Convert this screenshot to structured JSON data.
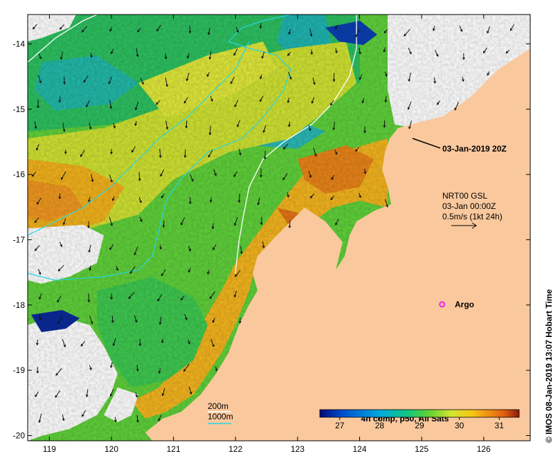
{
  "map": {
    "lon_ticks": [
      "119",
      "120",
      "121",
      "122",
      "123",
      "124",
      "125",
      "126"
    ],
    "lat_ticks": [
      "-14",
      "-15",
      "-16",
      "-17",
      "-18",
      "-19",
      "-20"
    ],
    "lon_range": [
      118.65,
      126.75
    ],
    "lat_range": [
      -20.08,
      -13.55
    ],
    "land_color": "#f9c89d",
    "cloud_color": "#ffffff"
  },
  "annotations": {
    "timestamp": "03-Jan-2019 20Z",
    "current_label": "NRT00 GSL",
    "current_date": "03-Jan 00:00Z",
    "current_scale": "0.5m/s (1kt 24h)",
    "argo_label": "Argo",
    "credit": "© IMOS 08-Jan-2019 13:07 Hobart Time",
    "contour_200": "200m",
    "contour_1000": "1000m",
    "contour_200_color": "#ffffff",
    "contour_1000_color": "#22d6e6"
  },
  "colorbar": {
    "title": "4h comp, p50, All Sats",
    "ticks": [
      "27",
      "28",
      "29",
      "30",
      "31"
    ],
    "tick_values": [
      27,
      28,
      29,
      30,
      31
    ],
    "range": [
      26.5,
      31.5
    ],
    "colors": [
      "#000a78",
      "#0050d0",
      "#00aadc",
      "#15c878",
      "#64d232",
      "#d2e632",
      "#f5c814",
      "#f08c14",
      "#dc5a0f",
      "#8b1a10"
    ]
  },
  "argo_float": {
    "lon": 125.33,
    "lat": -17.99,
    "color": "#ee22ee"
  }
}
